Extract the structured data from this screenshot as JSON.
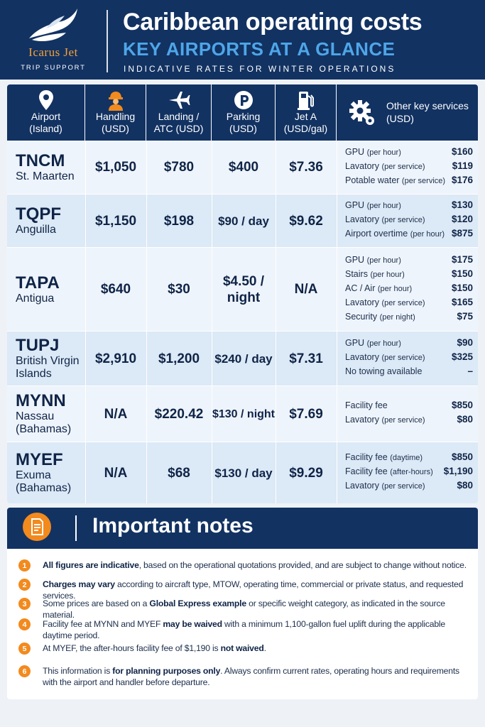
{
  "brand": {
    "name": "Icarus Jet",
    "tagline": "TRIP SUPPORT"
  },
  "header": {
    "title": "Caribbean operating costs",
    "subtitle": "KEY AIRPORTS AT A GLANCE",
    "tagline": "INDICATIVE RATES FOR WINTER OPERATIONS"
  },
  "table": {
    "columns": {
      "airport": {
        "l1": "Airport",
        "l2": "(Island)",
        "icon": "location-pin-icon"
      },
      "handling": {
        "l1": "Handling",
        "l2": "(USD)",
        "icon": "worker-icon"
      },
      "landing": {
        "l1": "Landing /",
        "l2": "ATC (USD)",
        "icon": "airplane-icon"
      },
      "parking": {
        "l1": "Parking",
        "l2": "(USD)",
        "icon": "parking-icon"
      },
      "jeta": {
        "l1": "Jet A",
        "l2": "(USD/gal)",
        "icon": "fuel-pump-icon"
      },
      "other": {
        "l1": "Other key services",
        "l2": "(USD)",
        "icon": "gear-icon"
      }
    },
    "rows": [
      {
        "icao": "TNCM",
        "island": [
          "St. Maarten"
        ],
        "handling": "$1,050",
        "landing": "$780",
        "parking": [
          "$400"
        ],
        "jeta": "$7.36",
        "services": [
          {
            "name": "GPU",
            "qual": "(per hour)",
            "price": "$160"
          },
          {
            "name": "Lavatory",
            "qual": "(per service)",
            "price": "$119"
          },
          {
            "name": "Potable water",
            "qual": "(per service)",
            "price": "$176"
          }
        ]
      },
      {
        "icao": "TQPF",
        "island": [
          "Anguilla"
        ],
        "handling": "$1,150",
        "landing": "$198",
        "parking": [
          "$90 / day"
        ],
        "jeta": "$9.62",
        "services": [
          {
            "name": "GPU",
            "qual": "(per hour)",
            "price": "$130"
          },
          {
            "name": "Lavatory",
            "qual": "(per service)",
            "price": "$120"
          },
          {
            "name": "Airport overtime",
            "qual": "(per hour)",
            "price": "$875"
          }
        ]
      },
      {
        "icao": "TAPA",
        "island": [
          "Antigua"
        ],
        "handling": "$640",
        "landing": "$30",
        "parking": [
          "$4.50 /",
          "night"
        ],
        "jeta": "N/A",
        "services": [
          {
            "name": "GPU",
            "qual": "(per hour)",
            "price": "$175"
          },
          {
            "name": "Stairs",
            "qual": "(per hour)",
            "price": "$150"
          },
          {
            "name": "AC / Air",
            "qual": "(per hour)",
            "price": "$150"
          },
          {
            "name": "Lavatory",
            "qual": "(per service)",
            "price": "$165"
          },
          {
            "name": "Security",
            "qual": "(per night)",
            "price": "$75"
          }
        ]
      },
      {
        "icao": "TUPJ",
        "island": [
          "British Virgin",
          "Islands"
        ],
        "handling": "$2,910",
        "landing": "$1,200",
        "parking": [
          "$240 / day"
        ],
        "jeta": "$7.31",
        "services": [
          {
            "name": "GPU",
            "qual": "(per hour)",
            "price": "$90"
          },
          {
            "name": "Lavatory",
            "qual": "(per service)",
            "price": "$325"
          },
          {
            "name": "No towing available",
            "qual": "",
            "price": "–"
          }
        ]
      },
      {
        "icao": "MYNN",
        "island": [
          "Nassau",
          "(Bahamas)"
        ],
        "handling": "N/A",
        "landing": "$220.42",
        "parking": [
          "$130 / night"
        ],
        "jeta": "$7.69",
        "services": [
          {
            "name": "Facility fee",
            "qual": "",
            "price": "$850"
          },
          {
            "name": "Lavatory",
            "qual": "(per service)",
            "price": "$80"
          }
        ]
      },
      {
        "icao": "MYEF",
        "island": [
          "Exuma",
          "(Bahamas)"
        ],
        "handling": "N/A",
        "landing": "$68",
        "parking": [
          "$130 / day"
        ],
        "jeta": "$9.29",
        "services": [
          {
            "name": "Facility fee",
            "qual": "(daytime)",
            "price": "$850"
          },
          {
            "name": "Facility fee",
            "qual": "(after-hours)",
            "price": "$1,190"
          },
          {
            "name": "Lavatory",
            "qual": "(per service)",
            "price": "$80"
          }
        ]
      }
    ]
  },
  "notes": {
    "title": "Important notes",
    "items": [
      {
        "num": "1",
        "parts": [
          {
            "b": "All figures are indicative"
          },
          {
            "t": ", based on the operational quotations provided, and are subject to change without notice."
          }
        ]
      },
      {
        "num": "2",
        "parts": [
          {
            "b": "Charges may vary"
          },
          {
            "t": " according to aircraft type, MTOW, operating time, commercial or private status, and requested services."
          }
        ]
      },
      {
        "num": "3",
        "parts": [
          {
            "t": "Some prices are based on a "
          },
          {
            "b": "Global Express example"
          },
          {
            "t": " or specific weight category, as indicated in the source material."
          }
        ]
      },
      {
        "num": "4",
        "parts": [
          {
            "t": "Facility fee at MYNN and MYEF "
          },
          {
            "b": "may be waived"
          },
          {
            "t": " with a minimum 1,100-gallon fuel uplift during the applicable daytime period."
          }
        ]
      },
      {
        "num": "5",
        "parts": [
          {
            "t": "At MYEF, the after-hours facility fee of $1,190 is "
          },
          {
            "b": "not waived"
          },
          {
            "t": "."
          }
        ]
      },
      {
        "num": "6",
        "parts": [
          {
            "t": "This information is "
          },
          {
            "b": "for planning purposes only"
          },
          {
            "t": ". Always confirm current rates, operating hours and requirements with the airport and handler before departure."
          }
        ]
      }
    ]
  }
}
